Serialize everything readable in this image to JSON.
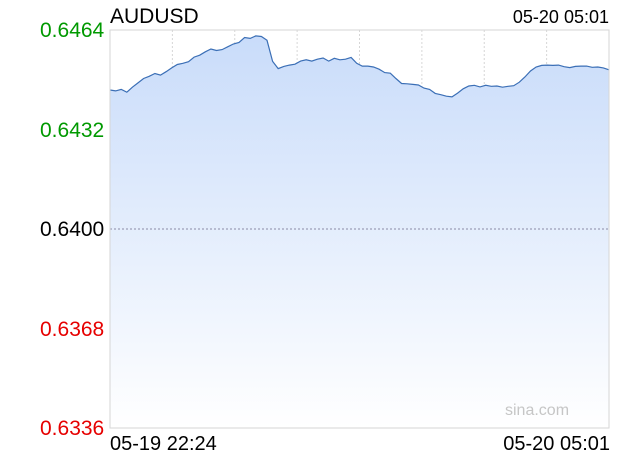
{
  "header": {
    "symbol": "AUDUSD",
    "timestamp": "05-20 05:01"
  },
  "watermark": "sina.com",
  "colors": {
    "up": "#009900",
    "flat": "#000000",
    "down": "#e60000",
    "line": "#3b6fb6",
    "fill_top": "#c9dcfa",
    "fill_bottom": "#ffffff",
    "grid": "#d6d6d6",
    "ref": "#8a8aa6"
  },
  "chart_data": {
    "type": "area",
    "title": "AUDUSD",
    "reference_value": 0.64,
    "ylim": [
      0.6336,
      0.6464
    ],
    "y_ticks": [
      {
        "value": 0.6464,
        "label": "0.6464",
        "status": "up"
      },
      {
        "value": 0.6432,
        "label": "0.6432",
        "status": "up"
      },
      {
        "value": 0.64,
        "label": "0.6400",
        "status": "flat"
      },
      {
        "value": 0.6368,
        "label": "0.6368",
        "status": "down"
      },
      {
        "value": 0.6336,
        "label": "0.6336",
        "status": "down"
      }
    ],
    "x_labels": [
      "05-19 22:24",
      "05-20 05:01"
    ],
    "grid": true,
    "series": [
      {
        "values": [
          0.64447,
          0.64444,
          0.64449,
          0.6444,
          0.64456,
          0.6447,
          0.64484,
          0.64491,
          0.645,
          0.64495,
          0.64506,
          0.64518,
          0.64529,
          0.64533,
          0.64538,
          0.64553,
          0.64559,
          0.6457,
          0.64579,
          0.64574,
          0.64577,
          0.64586,
          0.64595,
          0.646,
          0.64616,
          0.64613,
          0.64621,
          0.64619,
          0.64607,
          0.64539,
          0.64516,
          0.64523,
          0.64527,
          0.6453,
          0.6454,
          0.64544,
          0.6454,
          0.64546,
          0.6455,
          0.6454,
          0.64549,
          0.64544,
          0.64546,
          0.64552,
          0.64533,
          0.64524,
          0.64524,
          0.64521,
          0.64514,
          0.64503,
          0.64501,
          0.64484,
          0.64468,
          0.64467,
          0.64465,
          0.64463,
          0.64453,
          0.64449,
          0.64436,
          0.64432,
          0.64427,
          0.64425,
          0.64437,
          0.64451,
          0.6446,
          0.64462,
          0.64457,
          0.64462,
          0.64459,
          0.6446,
          0.64456,
          0.64459,
          0.64461,
          0.64472,
          0.64489,
          0.64508,
          0.64521,
          0.64526,
          0.64527,
          0.64526,
          0.64527,
          0.64522,
          0.64519,
          0.64523,
          0.64524,
          0.64524,
          0.6452,
          0.64521,
          0.64518,
          0.64512
        ]
      }
    ]
  }
}
